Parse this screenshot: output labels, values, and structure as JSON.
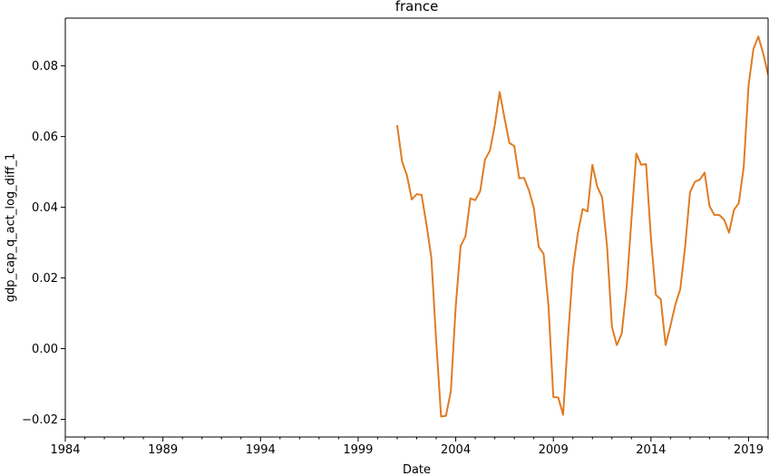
{
  "chart_data": {
    "type": "line",
    "title": "france",
    "xlabel": "Date",
    "ylabel": "gdp_cap_q_act_log_diff_1",
    "xlim": [
      1984.0,
      2020.0
    ],
    "ylim": [
      -0.025,
      0.0935
    ],
    "xticks": [
      1984,
      1989,
      1994,
      1999,
      2004,
      2009,
      2014,
      2019
    ],
    "yticks": [
      -0.02,
      0.0,
      0.02,
      0.04,
      0.06,
      0.08
    ],
    "ytick_labels": [
      "−0.02",
      "0.00",
      "0.02",
      "0.04",
      "0.06",
      "0.08"
    ],
    "grid": false,
    "line_color": "#e07b24",
    "series": [
      {
        "x": [
          2001.0,
          2001.25,
          2001.5,
          2001.75,
          2002.0,
          2002.25,
          2002.5,
          2002.75,
          2003.0,
          2003.25,
          2003.5,
          2003.75,
          2004.0,
          2004.25,
          2004.5,
          2004.75,
          2005.0,
          2005.25,
          2005.5,
          2005.75,
          2006.0,
          2006.25,
          2006.5,
          2006.75,
          2007.0,
          2007.25,
          2007.5,
          2007.75,
          2008.0,
          2008.25,
          2008.5,
          2008.75,
          2009.0,
          2009.25,
          2009.5,
          2009.75,
          2010.0,
          2010.25,
          2010.5,
          2010.75,
          2011.0,
          2011.25,
          2011.5,
          2011.75,
          2012.0,
          2012.25,
          2012.5,
          2012.75,
          2013.0,
          2013.25,
          2013.5,
          2013.75,
          2014.0,
          2014.25,
          2014.5,
          2014.75,
          2015.0,
          2015.25,
          2015.5,
          2015.75,
          2016.0,
          2016.25,
          2016.5,
          2016.75,
          2017.0,
          2017.25,
          2017.5,
          2017.75,
          2018.0,
          2018.25,
          2018.5,
          2018.75,
          2019.0,
          2019.25,
          2019.5,
          2019.75,
          2020.0
        ],
        "y": [
          0.0632,
          0.053,
          0.049,
          0.0422,
          0.0437,
          0.0435,
          0.0352,
          0.0258,
          0.002,
          -0.0192,
          -0.019,
          -0.012,
          0.012,
          0.029,
          0.0318,
          0.0425,
          0.042,
          0.0445,
          0.0535,
          0.056,
          0.0632,
          0.0726,
          0.0652,
          0.0582,
          0.0573,
          0.0482,
          0.0483,
          0.0448,
          0.0398,
          0.0288,
          0.0268,
          0.0122,
          -0.0137,
          -0.0138,
          -0.0187,
          0.003,
          0.0225,
          0.0325,
          0.0395,
          0.0388,
          0.052,
          0.0458,
          0.0428,
          0.029,
          0.0062,
          0.001,
          0.0042,
          0.017,
          0.0365,
          0.0552,
          0.052,
          0.0522,
          0.0312,
          0.0152,
          0.014,
          0.001,
          0.0065,
          0.0125,
          0.0168,
          0.0288,
          0.0442,
          0.0472,
          0.0478,
          0.0498,
          0.0403,
          0.0378,
          0.0378,
          0.0365,
          0.0328,
          0.0392,
          0.0412,
          0.0513,
          0.0745,
          0.0848,
          0.0883,
          0.0835,
          0.0775
        ]
      }
    ]
  }
}
